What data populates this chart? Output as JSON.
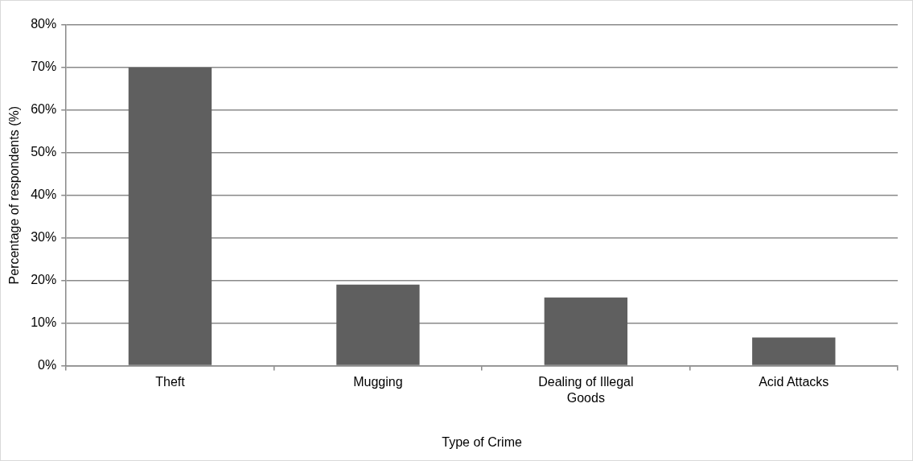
{
  "chart_data": {
    "type": "bar",
    "xlabel": "Type of Crime",
    "ylabel": "Percentage of respondents (%)",
    "categories": [
      "Theft",
      "Mugging",
      "Dealing of Illegal Goods",
      "Acid Attacks"
    ],
    "values": [
      70,
      19,
      16,
      6.6
    ],
    "color": "#5f5f5f",
    "ylim": [
      0,
      80
    ],
    "yticks": [
      {
        "value": 0,
        "label": "0%"
      },
      {
        "value": 10,
        "label": "10%"
      },
      {
        "value": 20,
        "label": "20%"
      },
      {
        "value": 30,
        "label": "30%"
      },
      {
        "value": 40,
        "label": "40%"
      },
      {
        "value": 50,
        "label": "50%"
      },
      {
        "value": 60,
        "label": "60%"
      },
      {
        "value": 70,
        "label": "70%"
      },
      {
        "value": 80,
        "label": "80%"
      }
    ],
    "grid": "y"
  }
}
